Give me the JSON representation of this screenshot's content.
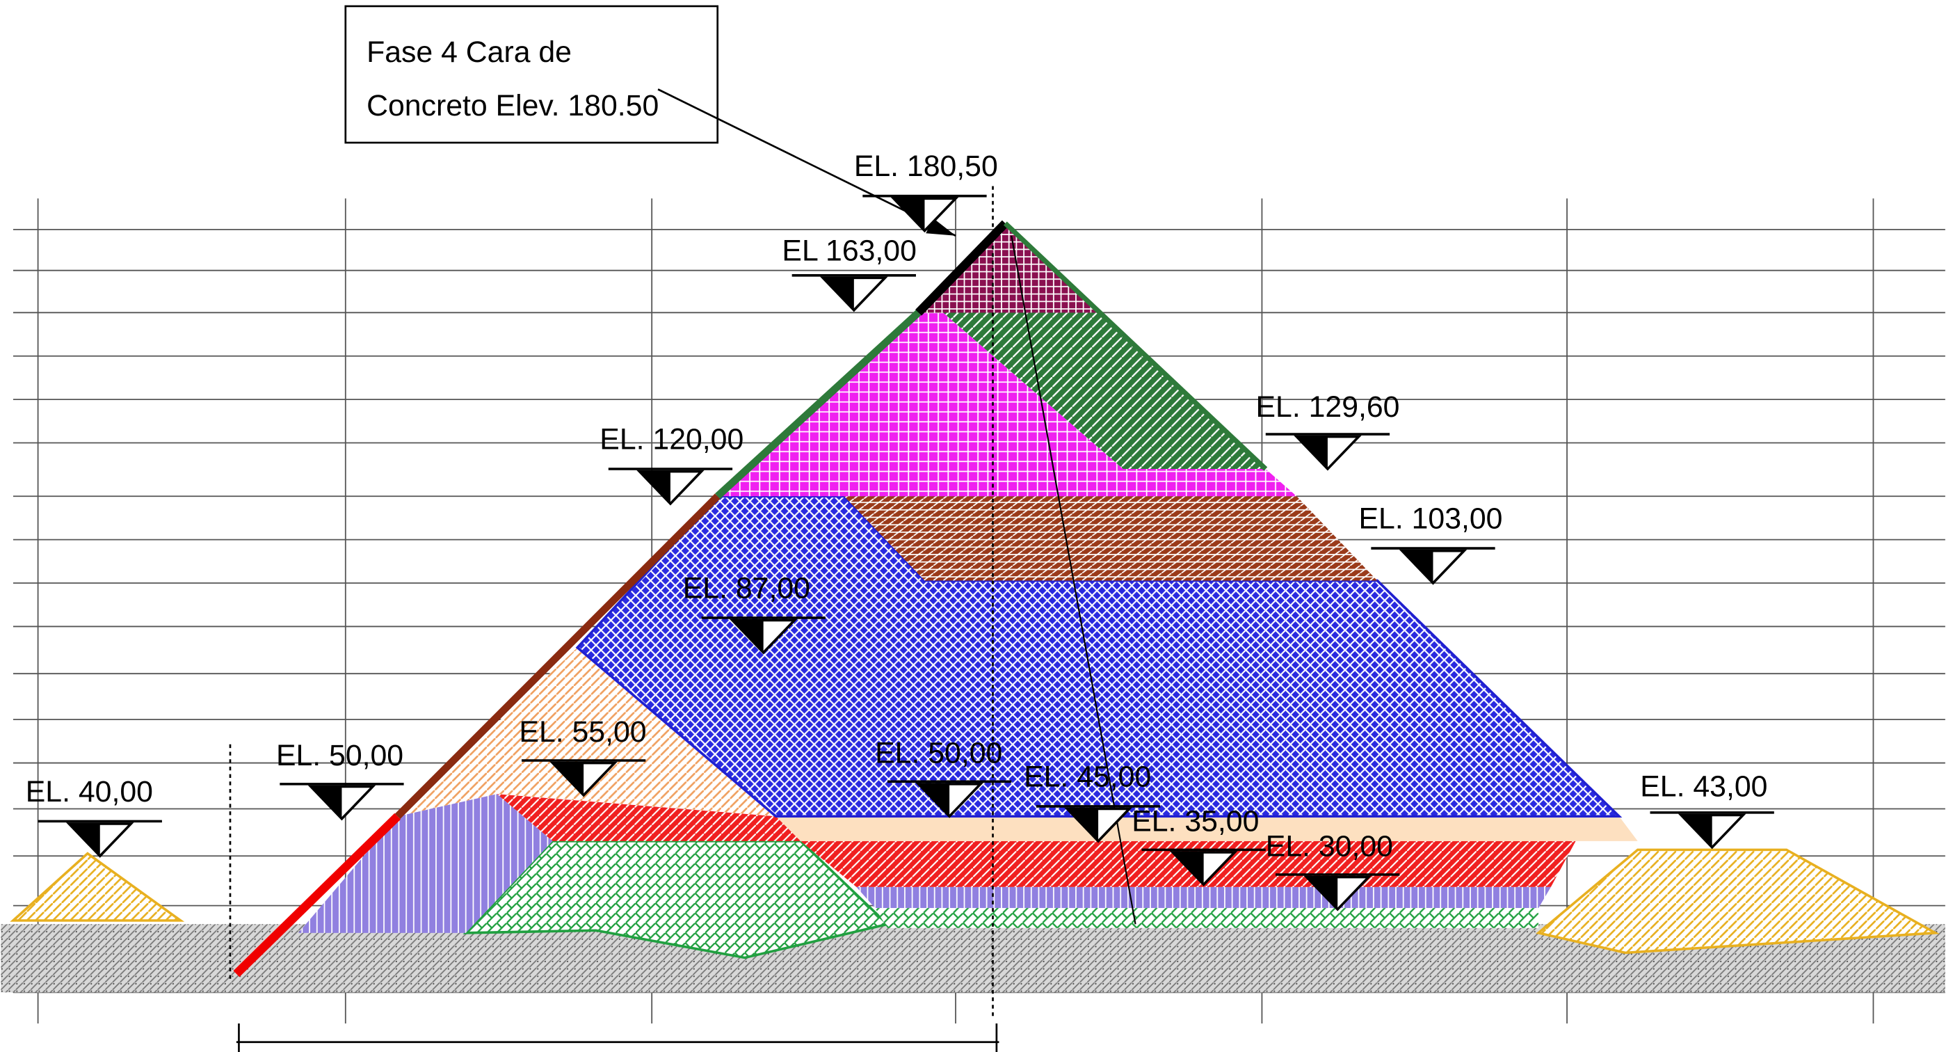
{
  "callout": {
    "lines": [
      "Fase 4 Cara de",
      "Concreto Elev. 180.50"
    ]
  },
  "elevations": [
    "EL. 180,50",
    "EL  163,00",
    "EL. 129,60",
    "EL. 120,00",
    "EL. 103,00",
    "EL. 87,00",
    "EL. 55,00",
    "EL. 50,00",
    "EL. 50,00",
    "EL. 45,00",
    "EL. 35,00",
    "EL. 30,00",
    "EL. 40,00",
    "EL. 43,00"
  ]
}
